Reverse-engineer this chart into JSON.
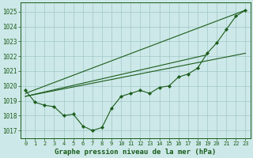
{
  "background_color": "#cde8e8",
  "plot_bg_color": "#cde8e8",
  "grid_color": "#a0c8c8",
  "line_color": "#1a5c1a",
  "xlabel": "Graphe pression niveau de la mer (hPa)",
  "xlim": [
    -0.5,
    23.5
  ],
  "ylim": [
    1016.5,
    1025.6
  ],
  "yticks": [
    1017,
    1018,
    1019,
    1020,
    1021,
    1022,
    1023,
    1024,
    1025
  ],
  "xticks": [
    0,
    1,
    2,
    3,
    4,
    5,
    6,
    7,
    8,
    9,
    10,
    11,
    12,
    13,
    14,
    15,
    16,
    17,
    18,
    19,
    20,
    21,
    22,
    23
  ],
  "main_x": [
    0,
    1,
    2,
    3,
    4,
    5,
    6,
    7,
    8,
    9,
    10,
    11,
    12,
    13,
    14,
    15,
    16,
    17,
    18,
    19,
    20,
    21,
    22,
    23
  ],
  "main_y": [
    1019.7,
    1018.9,
    1018.7,
    1018.6,
    1018.0,
    1018.1,
    1017.3,
    1017.0,
    1017.2,
    1018.5,
    1019.3,
    1019.5,
    1019.7,
    1019.5,
    1019.9,
    1020.0,
    1020.6,
    1020.8,
    1021.2,
    1022.2,
    1022.9,
    1023.8,
    1024.7,
    1025.1
  ],
  "line2_x": [
    0,
    23
  ],
  "line2_y": [
    1019.5,
    1025.1
  ],
  "line3_x": [
    0,
    23
  ],
  "line3_y": [
    1019.3,
    1022.2
  ],
  "line4_x": [
    0,
    19
  ],
  "line4_y": [
    1019.3,
    1022.1
  ]
}
